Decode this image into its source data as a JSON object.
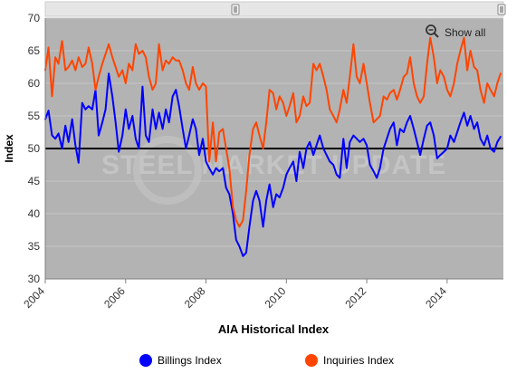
{
  "chart_data": {
    "type": "line",
    "title": "",
    "xlabel": "AIA Historical Index",
    "ylabel": "Index",
    "xlim": [
      2004.0,
      2015.4
    ],
    "ylim": [
      30,
      70
    ],
    "x_ticks": [
      "2004",
      "2006",
      "2008",
      "2010",
      "2012",
      "2014"
    ],
    "y_ticks": [
      "30",
      "35",
      "40",
      "45",
      "50",
      "55",
      "60",
      "65",
      "70"
    ],
    "reference_line": 50,
    "grid": "horizontal",
    "legend_position": "bottom-center",
    "watermark": "STEEL MARKET UPDATE",
    "show_all_label": "Show all",
    "colors": {
      "plot_background": "#b3b3b3",
      "grid": "#c6c6c6",
      "reference_line": "#000000",
      "billings": "#0000ff",
      "inquiries": "#ff4500",
      "scrollbar": "#e6e6e6"
    },
    "series": [
      {
        "name": "Billings Index",
        "x": [
          2004.0,
          2004.08,
          2004.17,
          2004.25,
          2004.33,
          2004.42,
          2004.5,
          2004.58,
          2004.67,
          2004.75,
          2004.83,
          2004.92,
          2005.0,
          2005.08,
          2005.17,
          2005.25,
          2005.33,
          2005.42,
          2005.5,
          2005.58,
          2005.67,
          2005.75,
          2005.83,
          2005.92,
          2006.0,
          2006.08,
          2006.17,
          2006.25,
          2006.33,
          2006.42,
          2006.5,
          2006.58,
          2006.67,
          2006.75,
          2006.83,
          2006.92,
          2007.0,
          2007.08,
          2007.17,
          2007.25,
          2007.33,
          2007.42,
          2007.5,
          2007.58,
          2007.67,
          2007.75,
          2007.83,
          2007.92,
          2008.0,
          2008.08,
          2008.17,
          2008.25,
          2008.33,
          2008.42,
          2008.5,
          2008.58,
          2008.67,
          2008.75,
          2008.83,
          2008.92,
          2009.0,
          2009.08,
          2009.17,
          2009.25,
          2009.33,
          2009.42,
          2009.5,
          2009.58,
          2009.67,
          2009.75,
          2009.83,
          2009.92,
          2010.0,
          2010.08,
          2010.17,
          2010.25,
          2010.33,
          2010.42,
          2010.5,
          2010.58,
          2010.67,
          2010.75,
          2010.83,
          2010.92,
          2011.0,
          2011.08,
          2011.17,
          2011.25,
          2011.33,
          2011.42,
          2011.5,
          2011.58,
          2011.67,
          2011.75,
          2011.83,
          2011.92,
          2012.0,
          2012.08,
          2012.17,
          2012.25,
          2012.33,
          2012.42,
          2012.5,
          2012.58,
          2012.67,
          2012.75,
          2012.83,
          2012.92,
          2013.0,
          2013.08,
          2013.17,
          2013.25,
          2013.33,
          2013.42,
          2013.5,
          2013.58,
          2013.67,
          2013.75,
          2013.83,
          2013.92,
          2014.0,
          2014.08,
          2014.17,
          2014.25,
          2014.33,
          2014.42,
          2014.5,
          2014.58,
          2014.67,
          2014.75,
          2014.83,
          2014.92,
          2015.0,
          2015.08,
          2015.17,
          2015.25,
          2015.33
        ],
        "values": [
          54.5,
          55.8,
          52.0,
          51.5,
          52.3,
          50.0,
          53.5,
          51.0,
          54.5,
          50.5,
          47.8,
          57.0,
          56.0,
          56.5,
          56.0,
          59.0,
          52.0,
          54.0,
          56.0,
          61.5,
          58.0,
          54.0,
          49.5,
          52.0,
          56.0,
          53.0,
          55.0,
          51.5,
          50.0,
          59.5,
          52.0,
          51.0,
          56.0,
          53.0,
          55.5,
          53.0,
          56.0,
          54.0,
          58.0,
          59.0,
          56.5,
          53.0,
          50.0,
          52.0,
          54.5,
          53.0,
          49.0,
          51.5,
          48.0,
          47.0,
          46.0,
          47.0,
          46.5,
          47.0,
          44.0,
          43.0,
          40.0,
          36.0,
          35.0,
          33.5,
          34.0,
          38.0,
          42.0,
          43.5,
          42.0,
          38.0,
          42.0,
          44.5,
          41.0,
          43.0,
          42.5,
          44.0,
          46.0,
          47.0,
          48.0,
          45.0,
          49.5,
          47.0,
          50.0,
          51.0,
          49.0,
          50.5,
          52.0,
          50.0,
          49.0,
          48.0,
          47.5,
          46.0,
          45.5,
          51.5,
          47.0,
          51.0,
          52.0,
          51.5,
          51.0,
          51.5,
          50.5,
          47.5,
          46.5,
          45.5,
          47.0,
          50.0,
          51.5,
          53.0,
          54.0,
          50.5,
          53.0,
          52.5,
          54.0,
          55.0,
          53.0,
          51.0,
          49.0,
          51.5,
          53.5,
          54.0,
          52.0,
          48.5,
          49.0,
          49.5,
          50.0,
          52.0,
          51.0,
          52.5,
          54.0,
          55.5,
          53.5,
          55.0,
          53.0,
          54.0,
          51.5,
          50.5,
          52.0,
          50.0,
          49.5,
          51.0,
          51.8
        ]
      },
      {
        "name": "Inquiries Index",
        "x": [
          2004.0,
          2004.08,
          2004.17,
          2004.25,
          2004.33,
          2004.42,
          2004.5,
          2004.58,
          2004.67,
          2004.75,
          2004.83,
          2004.92,
          2005.0,
          2005.08,
          2005.17,
          2005.25,
          2005.33,
          2005.42,
          2005.5,
          2005.58,
          2005.67,
          2005.75,
          2005.83,
          2005.92,
          2006.0,
          2006.08,
          2006.17,
          2006.25,
          2006.33,
          2006.42,
          2006.5,
          2006.58,
          2006.67,
          2006.75,
          2006.83,
          2006.92,
          2007.0,
          2007.08,
          2007.17,
          2007.25,
          2007.33,
          2007.42,
          2007.5,
          2007.58,
          2007.67,
          2007.75,
          2007.83,
          2007.92,
          2008.0,
          2008.08,
          2008.17,
          2008.25,
          2008.33,
          2008.42,
          2008.5,
          2008.58,
          2008.67,
          2008.75,
          2008.83,
          2008.92,
          2009.0,
          2009.08,
          2009.17,
          2009.25,
          2009.33,
          2009.42,
          2009.5,
          2009.58,
          2009.67,
          2009.75,
          2009.83,
          2009.92,
          2010.0,
          2010.08,
          2010.17,
          2010.25,
          2010.33,
          2010.42,
          2010.5,
          2010.58,
          2010.67,
          2010.75,
          2010.83,
          2010.92,
          2011.0,
          2011.08,
          2011.17,
          2011.25,
          2011.33,
          2011.42,
          2011.5,
          2011.58,
          2011.67,
          2011.75,
          2011.83,
          2011.92,
          2012.0,
          2012.08,
          2012.17,
          2012.25,
          2012.33,
          2012.42,
          2012.5,
          2012.58,
          2012.67,
          2012.75,
          2012.83,
          2012.92,
          2013.0,
          2013.08,
          2013.17,
          2013.25,
          2013.33,
          2013.42,
          2013.5,
          2013.58,
          2013.67,
          2013.75,
          2013.83,
          2013.92,
          2014.0,
          2014.08,
          2014.17,
          2014.25,
          2014.33,
          2014.42,
          2014.5,
          2014.58,
          2014.67,
          2014.75,
          2014.83,
          2014.92,
          2015.0,
          2015.08,
          2015.17,
          2015.25,
          2015.33
        ],
        "values": [
          62.0,
          65.5,
          58.0,
          64.0,
          63.0,
          66.5,
          62.0,
          62.5,
          63.5,
          62.0,
          64.0,
          62.5,
          63.0,
          65.5,
          63.0,
          59.0,
          61.0,
          63.0,
          64.5,
          66.0,
          64.0,
          62.5,
          61.0,
          62.0,
          60.0,
          63.0,
          62.0,
          66.0,
          64.5,
          65.0,
          64.0,
          61.0,
          59.0,
          60.0,
          66.0,
          62.0,
          63.5,
          63.0,
          64.0,
          63.5,
          63.5,
          62.0,
          60.0,
          59.0,
          62.5,
          60.0,
          59.0,
          60.0,
          59.5,
          48.0,
          54.0,
          48.0,
          52.5,
          53.0,
          50.0,
          47.0,
          41.0,
          39.0,
          38.0,
          39.0,
          43.5,
          49.0,
          53.0,
          54.0,
          52.0,
          50.0,
          54.0,
          59.0,
          58.5,
          56.0,
          58.0,
          57.0,
          55.0,
          56.5,
          58.5,
          54.0,
          55.0,
          58.0,
          56.5,
          57.0,
          63.0,
          62.0,
          63.0,
          61.0,
          59.0,
          56.0,
          55.0,
          54.0,
          56.0,
          59.0,
          57.0,
          61.0,
          66.0,
          61.0,
          60.0,
          63.0,
          60.0,
          57.0,
          54.0,
          54.5,
          55.0,
          58.0,
          57.5,
          58.5,
          59.0,
          57.5,
          59.0,
          61.0,
          61.5,
          64.0,
          60.0,
          58.0,
          57.0,
          58.0,
          63.0,
          67.0,
          64.0,
          60.0,
          62.0,
          61.0,
          59.0,
          58.0,
          60.0,
          63.0,
          65.0,
          67.0,
          62.0,
          65.0,
          62.5,
          62.0,
          59.0,
          57.0,
          60.0,
          59.0,
          58.0,
          60.0,
          61.5
        ]
      }
    ]
  }
}
